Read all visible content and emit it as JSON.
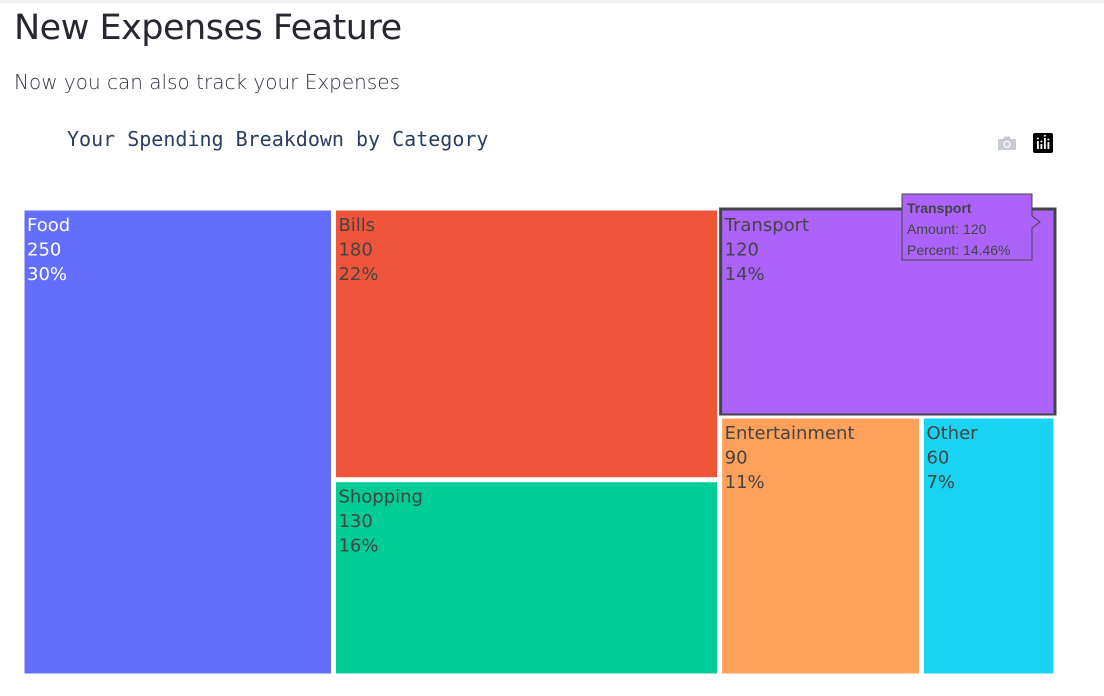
{
  "page": {
    "title": "New Expenses Feature",
    "subtitle": "Now you can also track your Expenses"
  },
  "toolbar": {
    "camera_icon": "camera-icon",
    "plotly_logo_icon": "plotly-logo-icon"
  },
  "chart_data": {
    "type": "treemap",
    "title": "Your Spending Breakdown by Category",
    "items": [
      {
        "label": "Food",
        "value": 250,
        "percent_label": "30%",
        "color": "#636efa",
        "text_color": "#ffffff"
      },
      {
        "label": "Bills",
        "value": 180,
        "percent_label": "22%",
        "color": "#ef553b",
        "text_color": "#444444"
      },
      {
        "label": "Shopping",
        "value": 130,
        "percent_label": "16%",
        "color": "#00cc96",
        "text_color": "#444444"
      },
      {
        "label": "Transport",
        "value": 120,
        "percent_label": "14%",
        "color": "#ab63fa",
        "text_color": "#444444"
      },
      {
        "label": "Entertainment",
        "value": 90,
        "percent_label": "11%",
        "color": "#ffa15a",
        "text_color": "#444444"
      },
      {
        "label": "Other",
        "value": 60,
        "percent_label": "7%",
        "color": "#19d3f3",
        "text_color": "#444444"
      }
    ],
    "hover": {
      "label": "Transport",
      "amount_line": "Amount: 120",
      "percent_line": "Percent: 14.46%"
    }
  }
}
